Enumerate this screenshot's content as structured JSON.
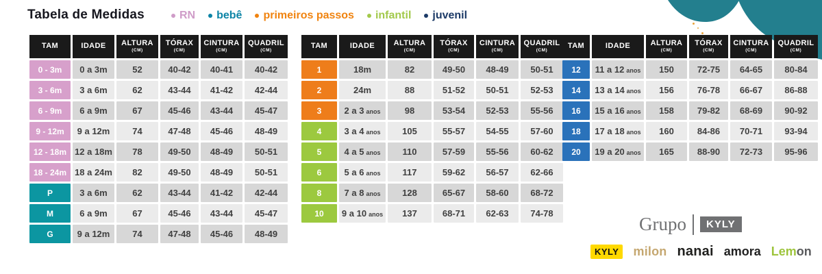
{
  "title": "Tabela de Medidas",
  "legend": [
    {
      "label": "RN",
      "color": "#cf9cc8"
    },
    {
      "label": "bebê",
      "color": "#0c84a6"
    },
    {
      "label": "primeiros passos",
      "color": "#f0830f"
    },
    {
      "label": "infantil",
      "color": "#a2c94b"
    },
    {
      "label": "juvenil",
      "color": "#1c3a67"
    }
  ],
  "columns": [
    "TAM",
    "IDADE",
    "ALTURA",
    "TÓRAX",
    "CINTURA",
    "QUADRIL"
  ],
  "cm_suffix": "(CM)",
  "colors": {
    "pink": "#d7a0cb",
    "teal": "#0c96a1",
    "orange": "#ee7d1b",
    "green": "#9cc93f",
    "blue": "#2a72ba",
    "header": "#1a1a1a",
    "row_dark": "#d7d7d7",
    "row_light": "#ebebeb",
    "corner_blob": "#237f8e"
  },
  "tables": [
    {
      "name": "rn-bebe",
      "rows": [
        {
          "tam": "0 - 3m",
          "tam_color": "pink",
          "idade": "0 a 3m",
          "idade_suffix": "",
          "altura": "52",
          "torax": "40-42",
          "cintura": "40-41",
          "quadril": "40-42"
        },
        {
          "tam": "3 - 6m",
          "tam_color": "pink",
          "idade": "3 a 6m",
          "idade_suffix": "",
          "altura": "62",
          "torax": "43-44",
          "cintura": "41-42",
          "quadril": "42-44"
        },
        {
          "tam": "6 - 9m",
          "tam_color": "pink",
          "idade": "6 a 9m",
          "idade_suffix": "",
          "altura": "67",
          "torax": "45-46",
          "cintura": "43-44",
          "quadril": "45-47"
        },
        {
          "tam": "9 - 12m",
          "tam_color": "pink",
          "idade": "9 a 12m",
          "idade_suffix": "",
          "altura": "74",
          "torax": "47-48",
          "cintura": "45-46",
          "quadril": "48-49"
        },
        {
          "tam": "12 - 18m",
          "tam_color": "pink",
          "idade": "12 a 18m",
          "idade_suffix": "",
          "altura": "78",
          "torax": "49-50",
          "cintura": "48-49",
          "quadril": "50-51"
        },
        {
          "tam": "18 - 24m",
          "tam_color": "pink",
          "idade": "18 a 24m",
          "idade_suffix": "",
          "altura": "82",
          "torax": "49-50",
          "cintura": "48-49",
          "quadril": "50-51"
        },
        {
          "tam": "P",
          "tam_color": "teal",
          "idade": "3 a 6m",
          "idade_suffix": "",
          "altura": "62",
          "torax": "43-44",
          "cintura": "41-42",
          "quadril": "42-44"
        },
        {
          "tam": "M",
          "tam_color": "teal",
          "idade": "6 a 9m",
          "idade_suffix": "",
          "altura": "67",
          "torax": "45-46",
          "cintura": "43-44",
          "quadril": "45-47"
        },
        {
          "tam": "G",
          "tam_color": "teal",
          "idade": "9 a 12m",
          "idade_suffix": "",
          "altura": "74",
          "torax": "47-48",
          "cintura": "45-46",
          "quadril": "48-49"
        }
      ]
    },
    {
      "name": "primeiros-passos-infantil",
      "rows": [
        {
          "tam": "1",
          "tam_color": "orange",
          "idade": "18m",
          "idade_suffix": "",
          "altura": "82",
          "torax": "49-50",
          "cintura": "48-49",
          "quadril": "50-51"
        },
        {
          "tam": "2",
          "tam_color": "orange",
          "idade": "24m",
          "idade_suffix": "",
          "altura": "88",
          "torax": "51-52",
          "cintura": "50-51",
          "quadril": "52-53"
        },
        {
          "tam": "3",
          "tam_color": "orange",
          "idade": "2 a 3",
          "idade_suffix": "anos",
          "altura": "98",
          "torax": "53-54",
          "cintura": "52-53",
          "quadril": "55-56"
        },
        {
          "tam": "4",
          "tam_color": "green",
          "idade": "3 a 4",
          "idade_suffix": "anos",
          "altura": "105",
          "torax": "55-57",
          "cintura": "54-55",
          "quadril": "57-60"
        },
        {
          "tam": "5",
          "tam_color": "green",
          "idade": "4 a 5",
          "idade_suffix": "anos",
          "altura": "110",
          "torax": "57-59",
          "cintura": "55-56",
          "quadril": "60-62"
        },
        {
          "tam": "6",
          "tam_color": "green",
          "idade": "5 a 6",
          "idade_suffix": "anos",
          "altura": "117",
          "torax": "59-62",
          "cintura": "56-57",
          "quadril": "62-66"
        },
        {
          "tam": "8",
          "tam_color": "green",
          "idade": "7 a 8",
          "idade_suffix": "anos",
          "altura": "128",
          "torax": "65-67",
          "cintura": "58-60",
          "quadril": "68-72"
        },
        {
          "tam": "10",
          "tam_color": "green",
          "idade": "9 a 10",
          "idade_suffix": "anos",
          "altura": "137",
          "torax": "68-71",
          "cintura": "62-63",
          "quadril": "74-78"
        }
      ]
    },
    {
      "name": "juvenil",
      "rows": [
        {
          "tam": "12",
          "tam_color": "blue",
          "idade": "11 a 12",
          "idade_suffix": "anos",
          "altura": "150",
          "torax": "72-75",
          "cintura": "64-65",
          "quadril": "80-84"
        },
        {
          "tam": "14",
          "tam_color": "blue",
          "idade": "13 a 14",
          "idade_suffix": "anos",
          "altura": "156",
          "torax": "76-78",
          "cintura": "66-67",
          "quadril": "86-88"
        },
        {
          "tam": "16",
          "tam_color": "blue",
          "idade": "15 a 16",
          "idade_suffix": "anos",
          "altura": "158",
          "torax": "79-82",
          "cintura": "68-69",
          "quadril": "90-92"
        },
        {
          "tam": "18",
          "tam_color": "blue",
          "idade": "17 a 18",
          "idade_suffix": "anos",
          "altura": "160",
          "torax": "84-86",
          "cintura": "70-71",
          "quadril": "93-94"
        },
        {
          "tam": "20",
          "tam_color": "blue",
          "idade": "19 a 20",
          "idade_suffix": "anos",
          "altura": "165",
          "torax": "88-90",
          "cintura": "72-73",
          "quadril": "95-96"
        }
      ]
    }
  ],
  "footer": {
    "grupo_word": "Grupo",
    "grupo_badge": "KYLY",
    "brands": {
      "kyly": "KYLY",
      "milon": "milon",
      "nanai": "nanai",
      "amora": "amora",
      "lemon_green": "Lem",
      "lemon_gray": "on"
    }
  }
}
